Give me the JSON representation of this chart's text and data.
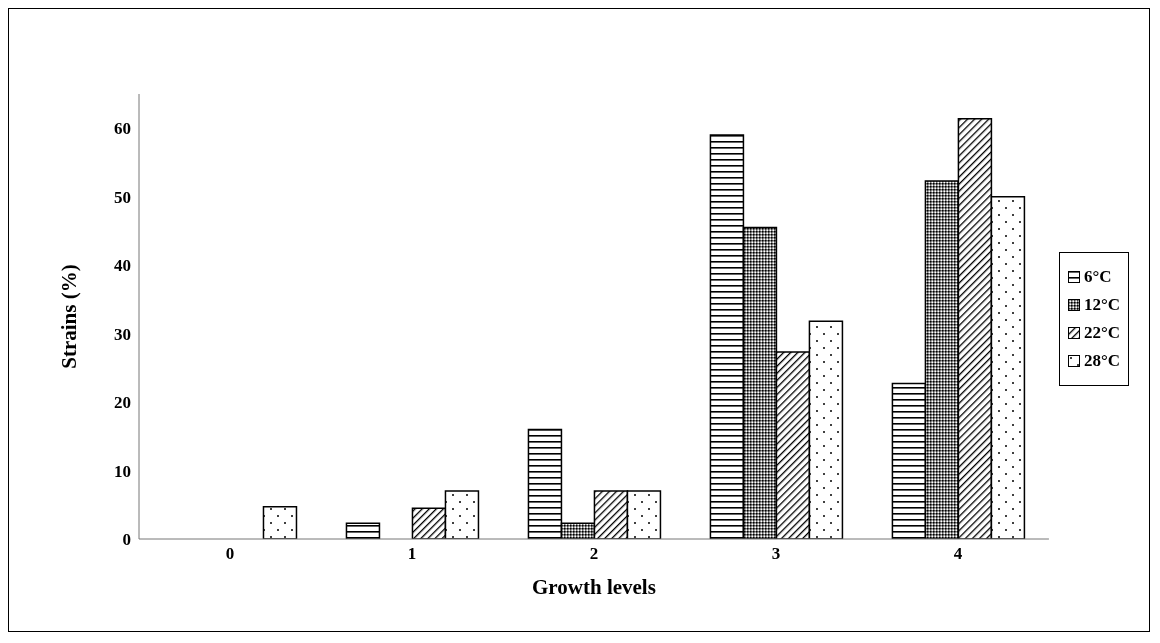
{
  "chart_data": {
    "type": "bar",
    "xlabel": "Growth levels",
    "ylabel": "Strains (%)",
    "categories": [
      "0",
      "1",
      "2",
      "3",
      "4"
    ],
    "series": [
      {
        "name": "6°C",
        "color": "#000000",
        "values": [
          0,
          2.3,
          16,
          59,
          22.7
        ]
      },
      {
        "name": "12°C",
        "color": "#000000",
        "values": [
          0,
          0,
          2.3,
          45.5,
          52.3
        ]
      },
      {
        "name": "22°C",
        "color": "#000000",
        "values": [
          0,
          4.5,
          7,
          27.3,
          61.4
        ]
      },
      {
        "name": "28°C",
        "color": "#000000",
        "values": [
          4.7,
          7,
          7,
          31.8,
          50
        ]
      }
    ],
    "ylim": [
      0,
      65
    ],
    "yticks": [
      0,
      10,
      20,
      30,
      40,
      50,
      60
    ],
    "grid": false,
    "legend": "right"
  }
}
